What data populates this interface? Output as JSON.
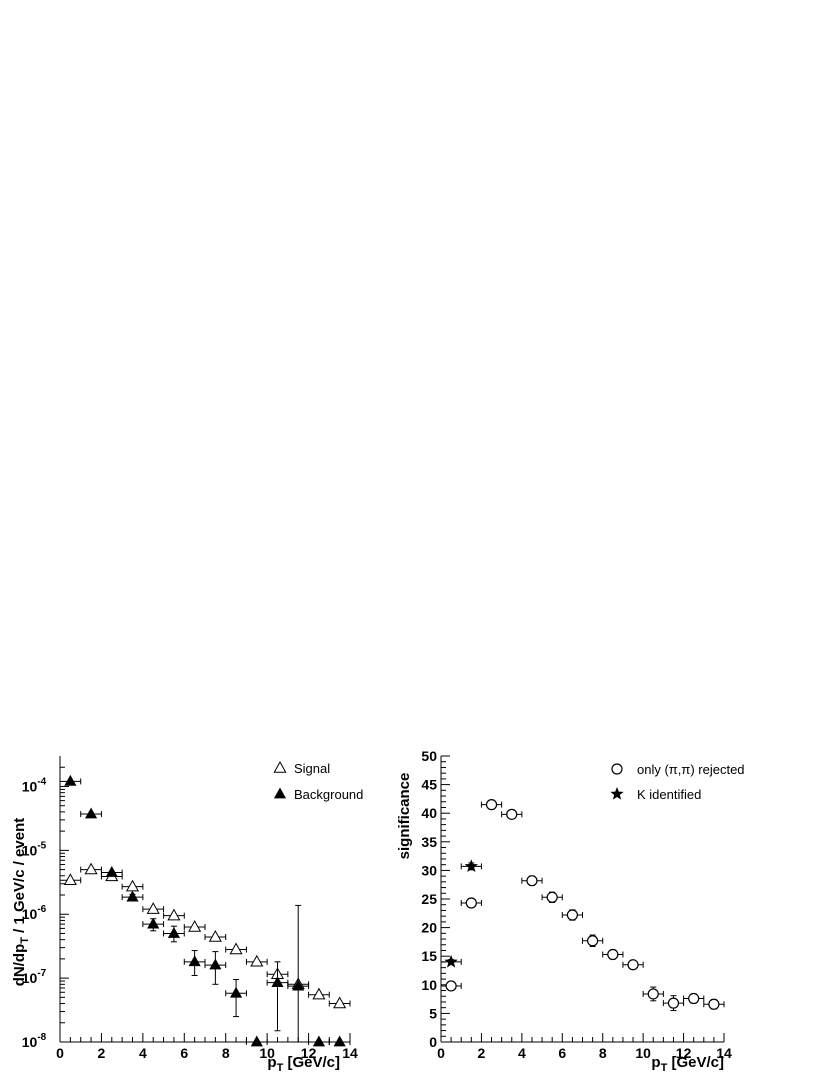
{
  "chart_data": [
    {
      "type": "scatter",
      "title": "",
      "xlabel": "p_T [GeV/c]",
      "xlabel_main": "p",
      "xlabel_sub": "T",
      "xlabel_rest": " [GeV/c]",
      "ylabel": "dN/dp_T / 1 GeV/c / event",
      "ylabel_pre": "dN/dp",
      "ylabel_sub": "T",
      "ylabel_post": " / 1 GeV/c / event",
      "xlim": [
        0,
        14
      ],
      "ylim": [
        1e-08,
        0.0003
      ],
      "yscale": "log",
      "grid": false,
      "legend_position": "top-right",
      "x_ticks": [
        "0",
        "2",
        "4",
        "6",
        "8",
        "10",
        "12",
        "14"
      ],
      "y_ticks": [
        {
          "base": "10",
          "exp": "-8",
          "value": 1e-08
        },
        {
          "base": "10",
          "exp": "-7",
          "value": 1e-07
        },
        {
          "base": "10",
          "exp": "-6",
          "value": 1e-06
        },
        {
          "base": "10",
          "exp": "-5",
          "value": 1e-05
        },
        {
          "base": "10",
          "exp": "-4",
          "value": 0.0001
        }
      ],
      "series": [
        {
          "name": "Signal",
          "marker": "open-triangle",
          "color": "#000000",
          "x": [
            0.5,
            1.5,
            2.5,
            3.5,
            4.5,
            5.5,
            6.5,
            7.5,
            8.5,
            9.5,
            10.5,
            11.5,
            12.5,
            13.5
          ],
          "y": [
            3.4e-06,
            5e-06,
            3.9e-06,
            2.7e-06,
            1.2e-06,
            9.5e-07,
            6.3e-07,
            4.4e-07,
            2.8e-07,
            1.8e-07,
            1.15e-07,
            8e-08,
            5.5e-08,
            4e-08
          ],
          "xerr": [
            0.5,
            0.5,
            0.5,
            0.5,
            0.5,
            0.5,
            0.5,
            0.5,
            0.5,
            0.5,
            0.5,
            0.5,
            0.5,
            0.5
          ],
          "yerr_low": [
            0,
            0,
            0,
            0,
            0,
            0,
            0,
            0,
            0,
            0,
            0,
            0,
            0,
            0
          ],
          "yerr_high": [
            0,
            0,
            0,
            0,
            0,
            0,
            0,
            0,
            0,
            0,
            0,
            0,
            0,
            0
          ]
        },
        {
          "name": "Background",
          "marker": "filled-triangle",
          "color": "#000000",
          "x": [
            0.5,
            1.5,
            2.5,
            3.5,
            4.5,
            5.5,
            6.5,
            7.5,
            8.5,
            9.5,
            10.5,
            11.5,
            12.5,
            13.5
          ],
          "y": [
            0.00012,
            3.7e-05,
            4.5e-06,
            1.85e-06,
            7e-07,
            5e-07,
            1.8e-07,
            1.6e-07,
            5.8e-08,
            1e-08,
            8.5e-08,
            7.5e-08,
            1e-08,
            1e-08
          ],
          "xerr": [
            0.5,
            0.5,
            0.5,
            0.5,
            0.5,
            0.5,
            0.5,
            0.5,
            0.5,
            0.5,
            0.5,
            0.5,
            0.5,
            0.5
          ],
          "yerr_low": [
            0,
            0,
            0,
            2e-07,
            1.5e-07,
            1.3e-07,
            7e-08,
            8e-08,
            3.3e-08,
            0,
            7e-08,
            6.5e-08,
            0,
            0
          ],
          "yerr_high": [
            0,
            0,
            0,
            2e-07,
            1.5e-07,
            1.5e-07,
            9e-08,
            1e-07,
            3.7e-08,
            0,
            9.5e-08,
            1.3e-06,
            0,
            0
          ]
        }
      ]
    },
    {
      "type": "scatter",
      "title": "",
      "xlabel": "p_T [GeV/c]",
      "xlabel_main": "p",
      "xlabel_sub": "T",
      "xlabel_rest": " [GeV/c]",
      "ylabel": "significance",
      "xlim": [
        0,
        14
      ],
      "ylim": [
        0,
        50
      ],
      "yscale": "linear",
      "grid": false,
      "legend_position": "top-right",
      "x_ticks": [
        "0",
        "2",
        "4",
        "6",
        "8",
        "10",
        "12",
        "14"
      ],
      "y_ticks": [
        "0",
        "5",
        "10",
        "15",
        "20",
        "25",
        "30",
        "35",
        "40",
        "45",
        "50"
      ],
      "series": [
        {
          "name": "only (π,π) rejected",
          "marker": "open-circle",
          "color": "#000000",
          "x": [
            0.5,
            1.5,
            2.5,
            3.5,
            4.5,
            5.5,
            6.5,
            7.5,
            8.5,
            9.5,
            10.5,
            11.5,
            12.5,
            13.5
          ],
          "y": [
            9.8,
            24.3,
            41.5,
            39.8,
            28.2,
            25.3,
            22.2,
            17.7,
            15.3,
            13.5,
            8.4,
            6.8,
            7.6,
            6.6
          ],
          "xerr": [
            0.5,
            0.5,
            0.5,
            0.5,
            0.5,
            0.5,
            0.5,
            0.5,
            0.5,
            0.5,
            0.5,
            0.5,
            0.5,
            0.5
          ],
          "yerr": [
            0.5,
            0.6,
            0.7,
            0.7,
            0.8,
            0.9,
            0.9,
            1.0,
            0.8,
            0.7,
            1.2,
            1.3,
            0.8,
            0.8
          ]
        },
        {
          "name": "K identified",
          "marker": "filled-star",
          "color": "#000000",
          "x": [
            0.5,
            1.5
          ],
          "y": [
            14.0,
            30.7
          ],
          "xerr": [
            0.5,
            0.5
          ],
          "yerr": [
            0.4,
            0.6
          ]
        }
      ]
    }
  ]
}
